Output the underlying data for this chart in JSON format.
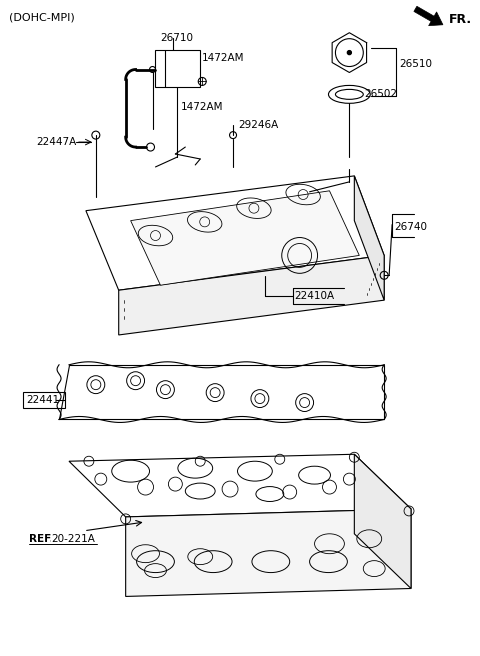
{
  "bg_color": "#ffffff",
  "fg_color": "#000000",
  "labels": {
    "dohc": "(DOHC-MPI)",
    "fr": "FR.",
    "n26710": "26710",
    "n1472am_top": "1472AM",
    "n1472am_bot": "1472AM",
    "n29246a": "29246A",
    "n22447a": "22447A",
    "n26510": "26510",
    "n26502": "26502",
    "n26740": "26740",
    "n22410a": "22410A",
    "n22441": "22441",
    "ref": "REF.",
    "ref_num": "20-221A"
  }
}
